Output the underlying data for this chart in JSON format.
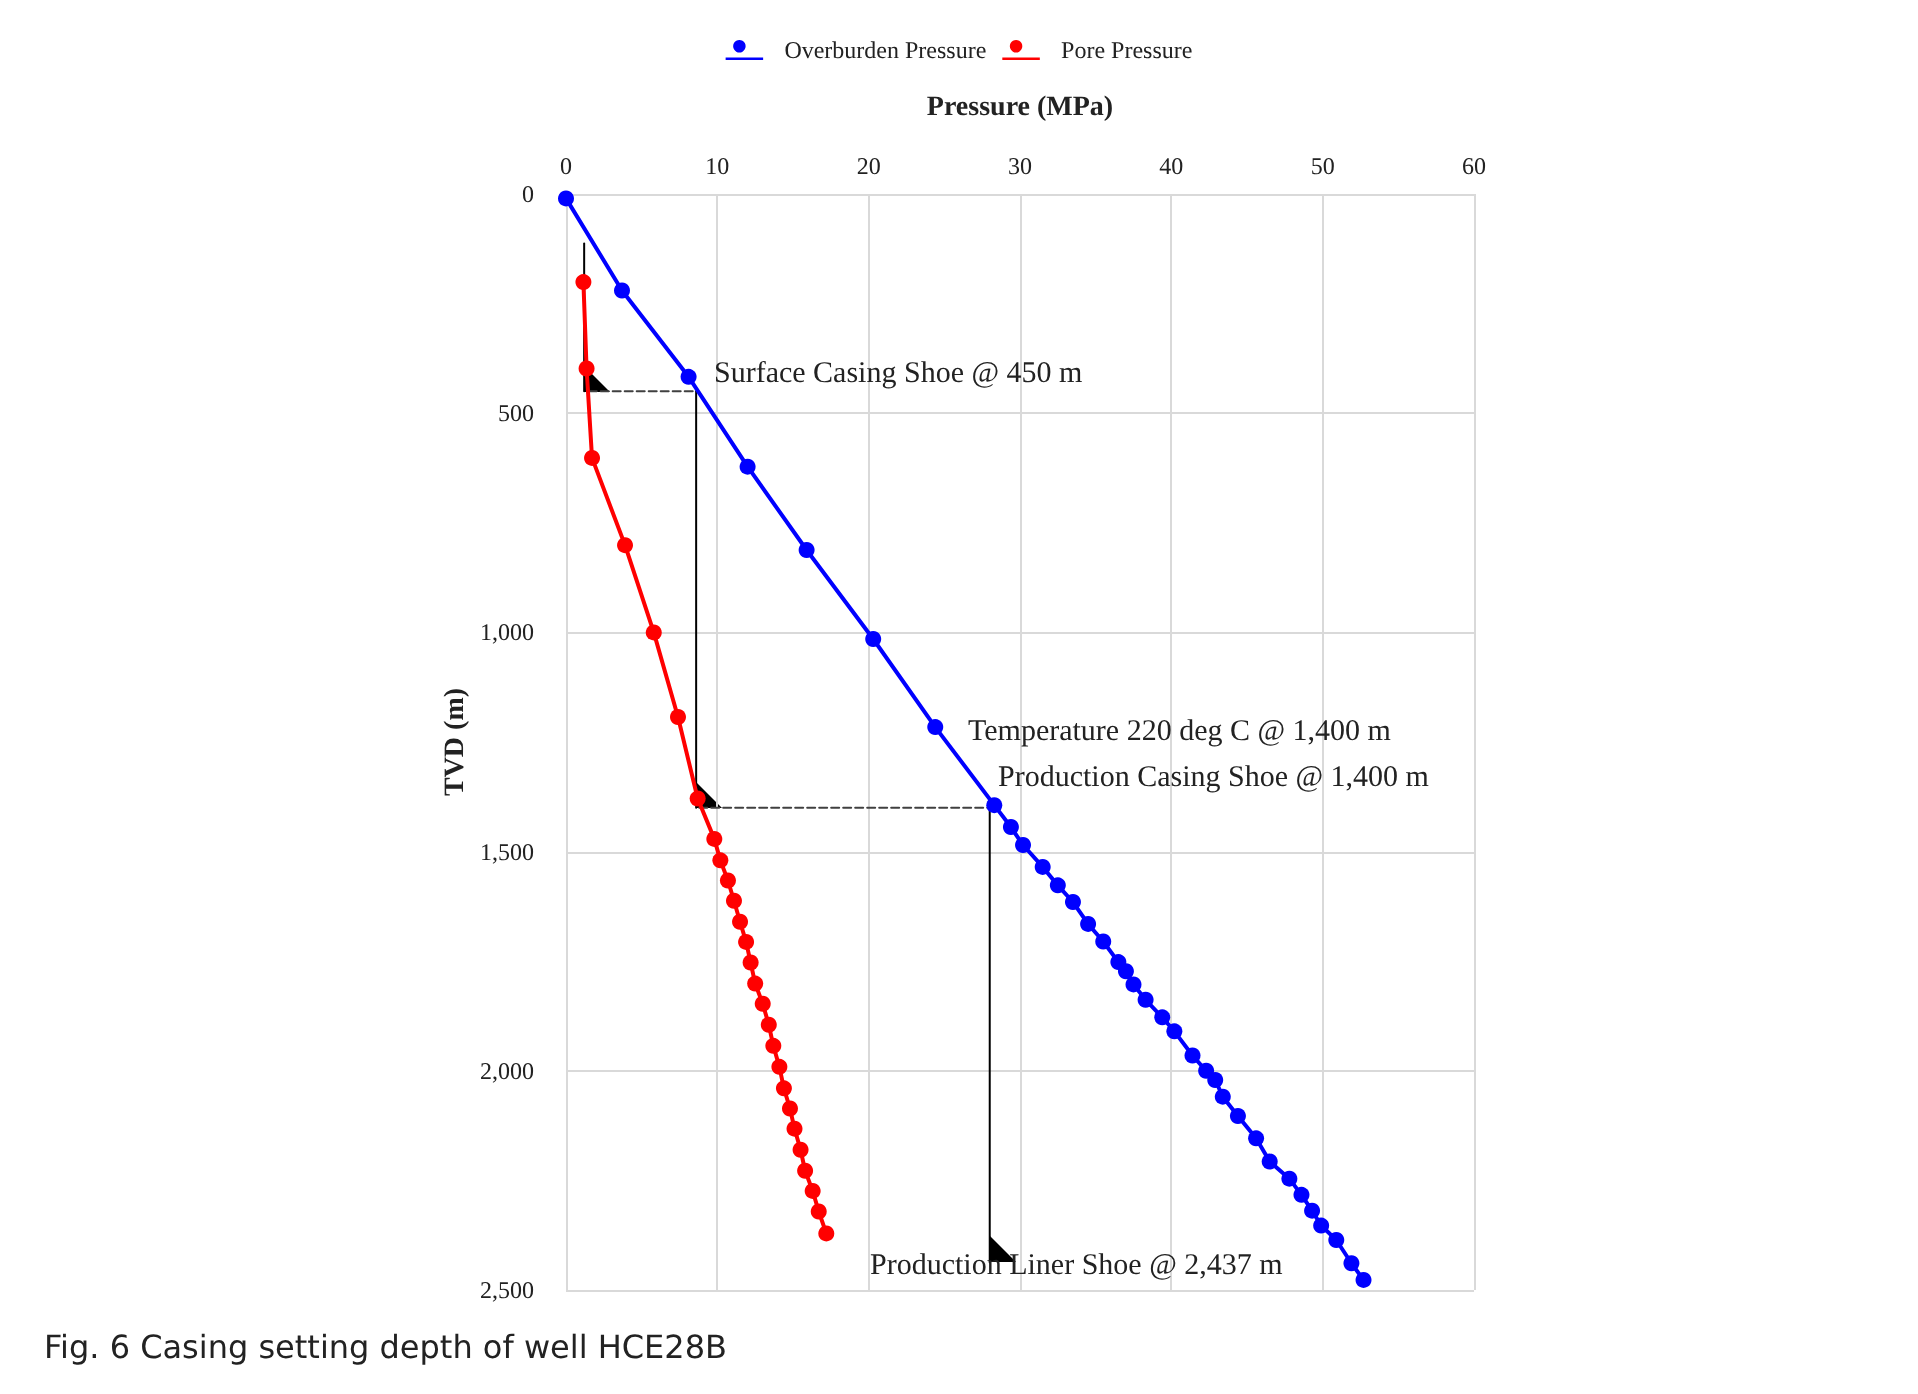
{
  "chart_data": {
    "type": "line",
    "title": "Fig. 6  Casing setting depth of well HCE28B",
    "xlabel": "Pressure (MPa)",
    "ylabel": "TVD (m)",
    "xlim": [
      0,
      60
    ],
    "xticks": [
      0,
      10,
      20,
      30,
      40,
      50,
      60
    ],
    "ylim": [
      2500,
      0
    ],
    "yticks": [
      0,
      500,
      {
        "value": 1000,
        "label": "1,000"
      },
      {
        "value": 1500,
        "label": "1,500"
      },
      {
        "value": 2000,
        "label": "2,000"
      },
      {
        "value": 2500,
        "label": "2,500"
      }
    ],
    "grid": true,
    "legend": "top",
    "marker": "circle",
    "line_style": "solid",
    "series": [
      {
        "name": "Overburden Pressure",
        "color": "#0000ff",
        "x": [
          0,
          3.7,
          8.1,
          12.0,
          15.9,
          20.3,
          24.4,
          28.3,
          29.4,
          30.2,
          31.5,
          32.5,
          33.5,
          34.5,
          35.5,
          36.5,
          37.0,
          37.5,
          38.3,
          39.4,
          40.2,
          41.4,
          42.3,
          42.9,
          43.4,
          44.4,
          45.6,
          46.5,
          47.8,
          48.6,
          49.3,
          49.9,
          50.9,
          51.9,
          52.7
        ],
        "values": [
          10,
          220,
          417,
          622,
          812,
          1015,
          1216,
          1394,
          1444,
          1485,
          1535,
          1577,
          1615,
          1665,
          1705,
          1752,
          1773,
          1803,
          1838,
          1878,
          1910,
          1965,
          2000,
          2021,
          2059,
          2103,
          2154,
          2207,
          2246,
          2283,
          2319,
          2353,
          2386,
          2439,
          2477
        ]
      },
      {
        "name": "Pore Pressure",
        "color": "#ff0000",
        "x": [
          1.15,
          1.36,
          1.72,
          3.9,
          5.8,
          7.4,
          8.7,
          9.8,
          10.2,
          10.7,
          11.1,
          11.5,
          11.9,
          12.2,
          12.5,
          13.0,
          13.4,
          13.7,
          14.1,
          14.4,
          14.8,
          15.1,
          15.5,
          15.8,
          16.3,
          16.7,
          17.2
        ],
        "values": [
          201,
          398,
          602,
          801,
          1000,
          1193,
          1379,
          1471,
          1520,
          1566,
          1612,
          1660,
          1706,
          1753,
          1801,
          1847,
          1895,
          1943,
          1991,
          2040,
          2086,
          2132,
          2180,
          2228,
          2274,
          2321,
          2371
        ]
      },
      {
        "color": "#000000",
        "x": [
          1.2,
          1.2
        ],
        "values": [
          113,
          450
        ],
        "marker": "none",
        "line_style": "solid"
      },
      {
        "color": "#404040",
        "x": [
          1.5,
          8.6
        ],
        "values": [
          450,
          450
        ],
        "marker": "none",
        "line_style": "dashed"
      },
      {
        "color": "#000000",
        "x": [
          8.6,
          8.6
        ],
        "values": [
          450,
          1400
        ],
        "marker": "none",
        "line_style": "solid"
      },
      {
        "color": "#404040",
        "x": [
          8.8,
          28.0
        ],
        "values": [
          1400,
          1400
        ],
        "marker": "none",
        "line_style": "dashed"
      },
      {
        "color": "#000000",
        "x": [
          28.0,
          28.0
        ],
        "values": [
          1400,
          2437
        ],
        "marker": "none",
        "line_style": "solid"
      }
    ],
    "annotations": [
      "Surface Casing Shoe @ 450 m",
      "Temperature 220 deg C @ 1,400 m",
      "Production Casing Shoe @ 1,400 m",
      "Production Liner Shoe @ 2,437 m"
    ]
  }
}
